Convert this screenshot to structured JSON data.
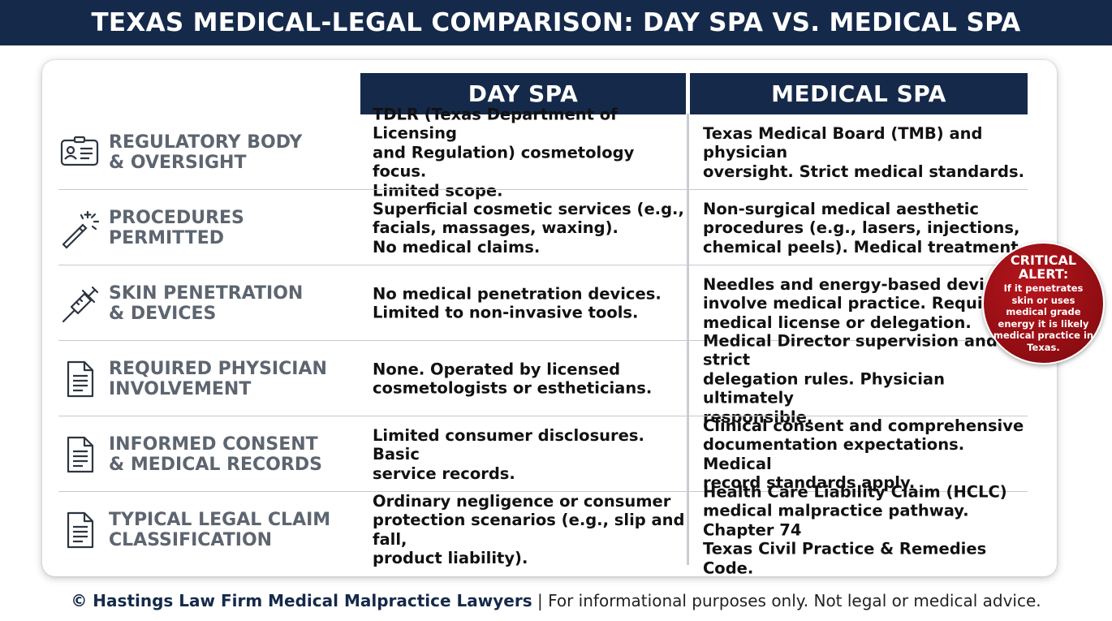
{
  "banner": {
    "title": "TEXAS MEDICAL-LEGAL COMPARISON: DAY SPA VS. MEDICAL SPA"
  },
  "columns": {
    "day_spa": "DAY SPA",
    "medical_spa": "MEDICAL SPA"
  },
  "rows": [
    {
      "icon": "id-card-icon",
      "label": "REGULATORY BODY\n& OVERSIGHT",
      "day_spa": "TDLR (Texas Department of Licensing\nand Regulation) cosmetology focus.\nLimited scope.",
      "medical_spa": "Texas Medical Board (TMB) and physician\noversight. Strict medical standards."
    },
    {
      "icon": "magic-wand-icon",
      "label": "PROCEDURES\nPERMITTED",
      "day_spa": "Superficial cosmetic services (e.g.,\nfacials, massages, waxing).\nNo medical claims.",
      "medical_spa": "Non-surgical medical aesthetic\nprocedures (e.g., lasers, injections,\nchemical peels). Medical treatment."
    },
    {
      "icon": "syringe-icon",
      "label": "SKIN PENETRATION\n& DEVICES",
      "day_spa": "No medical penetration devices.\nLimited to non-invasive tools.",
      "medical_spa": "Needles and energy-based devices\ninvolve medical practice. Requires\nmedical license or delegation."
    },
    {
      "icon": "document-icon",
      "label": "REQUIRED PHYSICIAN\nINVOLVEMENT",
      "day_spa": "None. Operated by licensed\ncosmetologists or estheticians.",
      "medical_spa": "Medical Director supervision and strict\ndelegation rules. Physician ultimately\nresponsible."
    },
    {
      "icon": "document-icon",
      "label": "INFORMED CONSENT\n& MEDICAL RECORDS",
      "day_spa": "Limited consumer disclosures. Basic\nservice records.",
      "medical_spa": "Clinical consent and comprehensive\ndocumentation expectations. Medical\nrecord standards apply."
    },
    {
      "icon": "document-icon",
      "label": "TYPICAL LEGAL CLAIM\nCLASSIFICATION",
      "day_spa": "Ordinary negligence or consumer\nprotection scenarios (e.g., slip and fall,\nproduct liability).",
      "medical_spa": "Health Care Liability Claim (HCLC)\nmedical malpractice pathway. Chapter 74\nTexas Civil Practice & Remedies Code."
    }
  ],
  "alert": {
    "title": "CRITICAL\nALERT:",
    "body": "If it penetrates skin or uses medical grade energy it is likely medical practice in Texas."
  },
  "footer": {
    "firm": "© Hastings Law Firm Medical Malpractice Lawyers",
    "note": " | For informational purposes only. Not legal or medical advice."
  },
  "colors": {
    "navy": "#15294a",
    "alert_red": "#9a1016",
    "label_gray": "#5d6570"
  }
}
